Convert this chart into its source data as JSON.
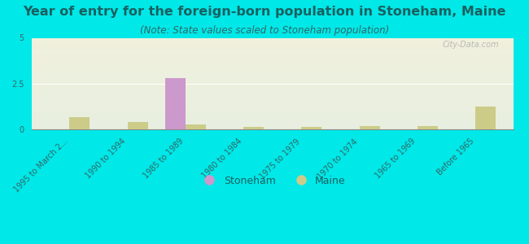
{
  "title": "Year of entry for the foreign-born population in Stoneham, Maine",
  "subtitle": "(Note: State values scaled to Stoneham population)",
  "categories": [
    "1995 to March 2...",
    "1990 to 1994",
    "1985 to 1989",
    "1980 to 1984",
    "1975 to 1979",
    "1970 to 1974",
    "1965 to 1969",
    "Before 1965"
  ],
  "stoneham_values": [
    0,
    0,
    2.8,
    0,
    0,
    0,
    0,
    0
  ],
  "maine_values": [
    0.65,
    0.38,
    0.28,
    0.12,
    0.15,
    0.18,
    0.18,
    1.25
  ],
  "stoneham_color": "#cc99cc",
  "maine_color": "#cccc88",
  "ylim": [
    0,
    5
  ],
  "yticks": [
    0,
    2.5,
    5
  ],
  "bg_color": "#00e8e8",
  "plot_bg_top": "#e8efe0",
  "plot_bg_bottom": "#f0f0dc",
  "watermark": "City-Data.com",
  "bar_width": 0.35,
  "title_fontsize": 11.5,
  "subtitle_fontsize": 8.5,
  "tick_fontsize": 7,
  "legend_fontsize": 9,
  "title_color": "#1a6060",
  "subtitle_color": "#336666",
  "tick_color": "#336666",
  "watermark_color": "#aaaaaa"
}
